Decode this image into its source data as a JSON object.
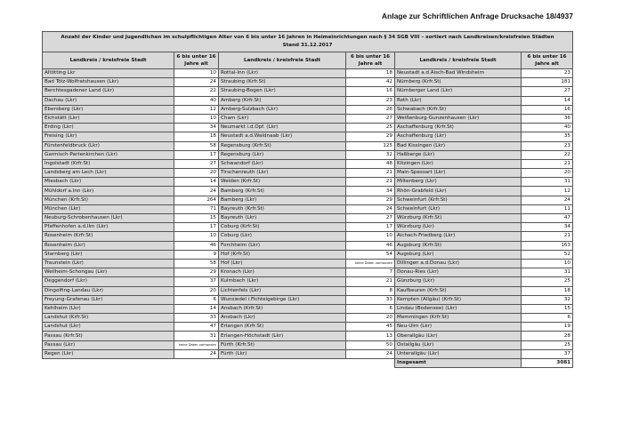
{
  "doc_title": "Anlage zur Schriftlichen Anfrage Drucksache 18/4937",
  "caption_line1": "Anzahl der Kinder und Jugendlichen im schulpflichtigen Alter von 6 bis unter 16 Jahren in Heimeinrichtungen nach § 34 SGB VIII – sortiert nach Landkreisen/kreisfreien Städten",
  "caption_line2": "Stand 31.12.2017",
  "col_name_header": "Landkreis / kreisfreie Stadt",
  "col_value_header": "6 bis unter 16 Jahre alt",
  "columns": [
    [
      [
        "Altötting Lkr",
        "10"
      ],
      [
        "Bad Tölz-Wolfratshausen (Lkr)",
        "24"
      ],
      [
        "Berchtesgadener Land (Lkr)",
        "22"
      ],
      [
        "Dachau (Lkr)",
        "40"
      ],
      [
        "Ebersberg (Lkr)",
        "12"
      ],
      [
        "Eichstätt (Lkr)",
        "10"
      ],
      [
        "Erding (Lkr)",
        "34"
      ],
      [
        "Freising (Lkr)",
        "18"
      ],
      [
        "Fürstenfeldbruck (Lkr)",
        "58"
      ],
      [
        "Garmisch-Partenkirchen (Lkr)",
        "17"
      ],
      [
        "Ingolstadt (Krfr.St)",
        "27"
      ],
      [
        "Landsberg am Lech (Lkr)",
        "20"
      ],
      [
        "Miesbach (Lkr)",
        "14"
      ],
      [
        "Mühldorf a.Inn (Lkr)",
        "24"
      ],
      [
        "München (Krfr.St)",
        "264"
      ],
      [
        "München (Lkr)",
        "71"
      ],
      [
        "Neuburg-Schrobenhausen (Lkr)",
        "15"
      ],
      [
        "Pfaffenhofen a.d.Ilm (Lkr)",
        "17"
      ],
      [
        "Rosenheim (Krfr.St)",
        "10"
      ],
      [
        "Rosenheim (Lkr)",
        "46"
      ],
      [
        "Starnberg (Lkr)",
        "9"
      ],
      [
        "Traunstein (Lkr)",
        "58"
      ],
      [
        "Weilheim-Schongau (Lkr)",
        "29"
      ],
      [
        "Deggendorf (Lkr)",
        "37"
      ],
      [
        "Dingolfing-Landau (Lkr)",
        "20"
      ],
      [
        "Freyung-Grafenau (Lkr)",
        "6"
      ],
      [
        "Kehlheim (Lkr)",
        "14"
      ],
      [
        "Landshut (Krfr.St)",
        "33"
      ],
      [
        "Landshut (Lkr)",
        "47"
      ],
      [
        "Passau (Krfr.St)",
        "31"
      ],
      [
        "Passau (Lkr)",
        "keine Daten vorhanden"
      ],
      [
        "Regen (Lkr)",
        "24"
      ]
    ],
    [
      [
        "Rottal-Inn (Lkr)",
        "18"
      ],
      [
        "Straubing (Krfr.St)",
        "42"
      ],
      [
        "Straubing-Bogen (Lkr)",
        "16"
      ],
      [
        "Amberg (Krfr.St)",
        "23"
      ],
      [
        "Amberg-Sulzbach (Lkr)",
        "26"
      ],
      [
        "Cham (Lkr)",
        "27"
      ],
      [
        "Neumarkt i.d.Opf. (Lkr)",
        "25"
      ],
      [
        "Neustadt a.d.Waldnaab (Lkr)",
        "29"
      ],
      [
        "Regensburg (Krfr.St)",
        "125"
      ],
      [
        "Regensburg (Lkr)",
        "32"
      ],
      [
        "Schwandorf (Lkr)",
        "48"
      ],
      [
        "Tirschenreuth (Lkr)",
        "21"
      ],
      [
        "Weiden (Krfr.St)",
        "21"
      ],
      [
        "Bamberg (Krfr.St)",
        "34"
      ],
      [
        "Bamberg (Lkr)",
        "29"
      ],
      [
        "Bayreuth (Krfr.St)",
        "24"
      ],
      [
        "Bayreuth (Lkr)",
        "27"
      ],
      [
        "Coburg (Krfr.St)",
        "17"
      ],
      [
        "Coburg (Lkr)",
        "10"
      ],
      [
        "Forchheim (Lkr)",
        "46"
      ],
      [
        "Hof (Krfr.St)",
        "54"
      ],
      [
        "Hof (Lkr)",
        "keine Daten vorhanden"
      ],
      [
        "Kronach (Lkr)",
        "7"
      ],
      [
        "Kulmbach (Lkr)",
        "21"
      ],
      [
        "Lichtenfels (Lkr)",
        "8"
      ],
      [
        "Wunsiedel i.Fichtelgebirge (Lkr)",
        "33"
      ],
      [
        "Ansbach (Krfr.St)",
        "6"
      ],
      [
        "Ansbach (Lkr)",
        "20"
      ],
      [
        "Erlangen (Krfr.St)",
        "45"
      ],
      [
        "Erlangen-Höchstadt (Lkr)",
        "13"
      ],
      [
        "Fürth (Krfr.St)",
        "50"
      ],
      [
        "Fürth (Lkr)",
        "24"
      ]
    ],
    [
      [
        "Neustadt a.d.Aisch-Bad Windsheim",
        "23"
      ],
      [
        "Nürnberg (Krfr.St)",
        "181"
      ],
      [
        "Nürnberger Land (Lkr)",
        "27"
      ],
      [
        "Roth (Lkr)",
        "14"
      ],
      [
        "Schwabach (Krfr.St)",
        "16"
      ],
      [
        "Weißenburg-Gunzenhausen (Lkr)",
        "36"
      ],
      [
        "Aschaffenburg (Krfr.St)",
        "40"
      ],
      [
        "Aschaffenburg (Lkr)",
        "35"
      ],
      [
        "Bad Kissingen (Lkr)",
        "23"
      ],
      [
        "Haßberge (Lkr)",
        "22"
      ],
      [
        "Kitzingen (Lkr)",
        "21"
      ],
      [
        "Main-Spessart (Lkr)",
        "20"
      ],
      [
        "Miltenberg (Lkr)",
        "31"
      ],
      [
        "Rhön-Grabfeld (Lkr)",
        "12"
      ],
      [
        "Schweinfurt (Krfr.St)",
        "24"
      ],
      [
        "Schweinfurt (Lkr)",
        "11"
      ],
      [
        "Würzburg (Krfr.St)",
        "47"
      ],
      [
        "Würzburg (Lkr)",
        "34"
      ],
      [
        "Aichach-Friedberg (Lkr)",
        "21"
      ],
      [
        "Augsburg (Krfr.St)",
        "163"
      ],
      [
        "Augsburg (Lkr)",
        "52"
      ],
      [
        "Dillingen a.d.Donau (Lkr)",
        "10"
      ],
      [
        "Donau-Ries (Lkr)",
        "31"
      ],
      [
        "Günzburg (Lkr)",
        "25"
      ],
      [
        "Kaufbeuren (Krfr.St)",
        "18"
      ],
      [
        "Kempten (Allgäu) (Krfr.St)",
        "32"
      ],
      [
        "Lindau (Bodensee) (Lkr)",
        "15"
      ],
      [
        "Memmingen (Krfr.St)",
        "6"
      ],
      [
        "Neu-Ulm (Lkr)",
        "19"
      ],
      [
        "Oberallgäu (Lkr)",
        "28"
      ],
      [
        "Ostallgäu (Lkr)",
        "25"
      ],
      [
        "Unterallgäu (Lkr)",
        "37"
      ]
    ]
  ],
  "total_label": "Insgesamt",
  "total_value": "3081"
}
